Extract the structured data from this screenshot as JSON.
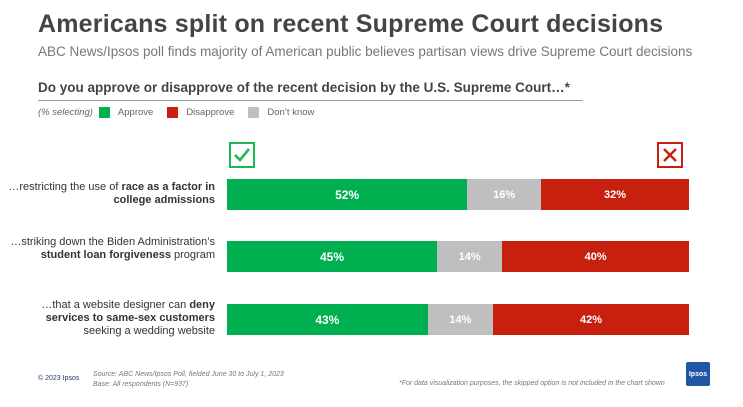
{
  "header": {
    "title": "Americans split on recent Supreme Court decisions",
    "subtitle": "ABC News/Ipsos poll finds majority of American public believes partisan views drive Supreme Court decisions",
    "question": "Do you approve or disapprove of the recent decision by the U.S. Supreme Court…*"
  },
  "legend": {
    "note": "(% selecting)",
    "items": [
      {
        "label": "Approve",
        "color": "#00b050"
      },
      {
        "label": "Disapprove",
        "color": "#c8200e"
      },
      {
        "label": "Don’t know",
        "color": "#bfbfbf"
      }
    ]
  },
  "icons": {
    "approve": "check-icon",
    "disapprove": "x-icon"
  },
  "rows": [
    {
      "pre": "…restricting the use of ",
      "bold": "race as a factor in college admissions",
      "post": ""
    },
    {
      "pre": "…striking down the Biden Administration’s ",
      "bold": "student loan forgiveness",
      "post": " program"
    },
    {
      "pre": "…that a website designer can ",
      "bold": "deny services to same-sex customers",
      "post": " seeking a wedding website"
    }
  ],
  "chart_data": {
    "type": "bar",
    "orientation": "horizontal-stacked",
    "categories": [
      "…restricting the use of race as a factor in college admissions",
      "…striking down the Biden Administration’s student loan forgiveness program",
      "…that a website designer can deny services to same-sex customers seeking a wedding website"
    ],
    "series": [
      {
        "name": "Approve",
        "values": [
          52,
          45,
          43
        ],
        "labels": [
          "52%",
          "45%",
          "43%"
        ],
        "color": "#00b050"
      },
      {
        "name": "Don’t know",
        "values": [
          16,
          14,
          14
        ],
        "labels": [
          "16%",
          "14%",
          "14%"
        ],
        "color": "#bfbfbf"
      },
      {
        "name": "Disapprove",
        "values": [
          32,
          40,
          42
        ],
        "labels": [
          "32%",
          "40%",
          "42%"
        ],
        "color": "#c8200e"
      }
    ],
    "xlim": [
      0,
      100
    ],
    "grid": false,
    "legend": "top-left"
  },
  "footer": {
    "copyright": "© 2023 Ipsos",
    "source_line1": "Source: ABC News/Ipsos Poll, fielded June 30 to July 1, 2023",
    "source_line2": "Base: All respondents (N=937)",
    "footnote": "*For data visualization purposes, the skipped option is not included in the chart shown",
    "logo": "Ipsos"
  }
}
